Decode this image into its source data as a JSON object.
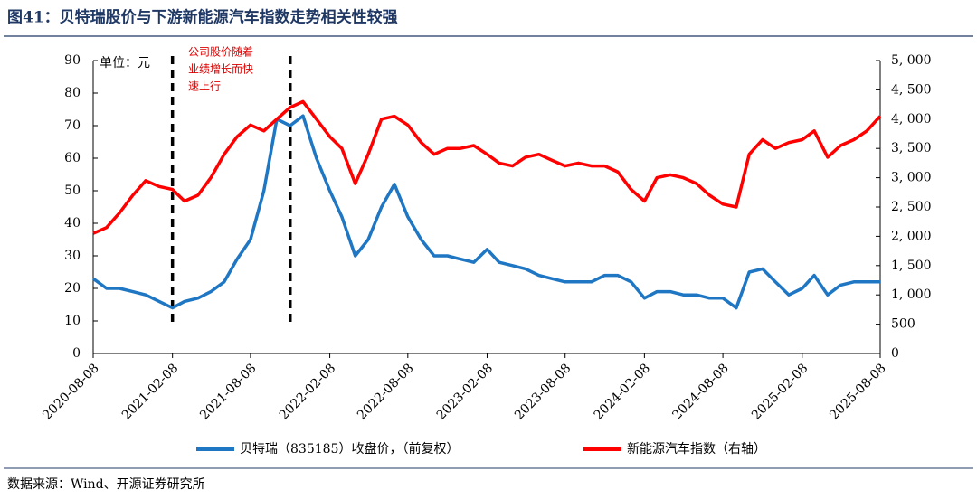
{
  "chart_data": {
    "type": "line",
    "title": "图41：贝特瑞股价与下游新能源汽车指数走势相关性较强",
    "y_label": "单位：元",
    "annotation": [
      "公司股价随着",
      "业绩增长而快",
      "速上行"
    ],
    "source": "数据来源：Wind、开源证券研究所",
    "x": [
      "2020-08-08",
      "2020-09-08",
      "2020-10-08",
      "2020-11-08",
      "2020-12-08",
      "2021-01-08",
      "2021-02-08",
      "2021-03-08",
      "2021-04-08",
      "2021-05-08",
      "2021-06-08",
      "2021-07-08",
      "2021-08-08",
      "2021-09-08",
      "2021-10-08",
      "2021-11-08",
      "2021-12-08",
      "2022-01-08",
      "2022-02-08",
      "2022-03-08",
      "2022-04-08",
      "2022-05-08",
      "2022-06-08",
      "2022-07-08",
      "2022-08-08",
      "2022-09-08",
      "2022-10-08",
      "2022-11-08",
      "2022-12-08",
      "2023-01-08",
      "2023-02-08",
      "2023-03-08",
      "2023-04-08",
      "2023-05-08",
      "2023-06-08",
      "2023-07-08",
      "2023-08-08",
      "2023-09-08",
      "2023-10-08",
      "2023-11-08",
      "2023-12-08",
      "2024-01-08",
      "2024-02-08",
      "2024-03-08",
      "2024-04-08",
      "2024-05-08",
      "2024-06-08",
      "2024-07-08",
      "2024-08-08",
      "2024-09-08",
      "2024-10-08",
      "2024-11-08",
      "2024-12-08",
      "2025-01-08",
      "2025-02-08",
      "2025-03-08",
      "2025-04-08",
      "2025-05-08",
      "2025-06-08",
      "2025-07-08",
      "2025-08-08"
    ],
    "series": [
      {
        "name": "贝特瑞（835185）收盘价，（前复权）",
        "color": "#1f77c4",
        "axis": "y",
        "values": [
          23,
          20,
          20,
          19,
          18,
          16,
          14,
          16,
          17,
          19,
          22,
          29,
          35,
          50,
          72,
          70,
          73,
          60,
          50,
          42,
          30,
          35,
          45,
          52,
          42,
          35,
          30,
          30,
          29,
          28,
          32,
          28,
          27,
          26,
          24,
          23,
          22,
          22,
          22,
          24,
          24,
          22,
          17,
          19,
          19,
          18,
          18,
          17,
          17,
          14,
          25,
          26,
          22,
          18,
          20,
          24,
          18,
          21,
          22,
          22,
          22
        ]
      },
      {
        "name": "新能源汽车指数（右轴）",
        "color": "#ff0000",
        "axis": "y2",
        "values": [
          2050,
          2150,
          2400,
          2700,
          2950,
          2850,
          2800,
          2600,
          2700,
          3000,
          3400,
          3700,
          3900,
          3800,
          4000,
          4200,
          4300,
          4000,
          3700,
          3500,
          2900,
          3400,
          4000,
          4050,
          3900,
          3600,
          3400,
          3500,
          3500,
          3550,
          3400,
          3250,
          3200,
          3350,
          3400,
          3300,
          3200,
          3250,
          3200,
          3200,
          3100,
          2800,
          2600,
          3000,
          3050,
          3000,
          2900,
          2700,
          2550,
          2500,
          3400,
          3650,
          3500,
          3600,
          3650,
          3800,
          3350,
          3550,
          3650,
          3800,
          4050
        ]
      }
    ],
    "event_lines": [
      "2021-02-08",
      "2021-11-08"
    ],
    "xlim": [
      "2020-08-08",
      "2025-08-08"
    ],
    "xticks": [
      "2020-08-08",
      "2021-02-08",
      "2021-08-08",
      "2022-02-08",
      "2022-08-08",
      "2023-02-08",
      "2023-08-08",
      "2024-02-08",
      "2024-08-08",
      "2025-02-08",
      "2025-08-08"
    ],
    "ylim": [
      0,
      90
    ],
    "yticks": [
      0,
      10,
      20,
      30,
      40,
      50,
      60,
      70,
      80,
      90
    ],
    "y2lim": [
      0,
      5000
    ],
    "y2ticks": [
      0,
      500,
      {
        "value": 1000,
        "label": "1, 000"
      },
      {
        "value": 1500,
        "label": "1, 500"
      },
      {
        "value": 2000,
        "label": "2, 000"
      },
      {
        "value": 2500,
        "label": "2, 500"
      },
      {
        "value": 3000,
        "label": "3, 000"
      },
      {
        "value": 3500,
        "label": "3, 500"
      },
      {
        "value": 4000,
        "label": "4, 000"
      },
      {
        "value": 4500,
        "label": "4, 500"
      },
      {
        "value": 5000,
        "label": "5, 000"
      }
    ]
  }
}
